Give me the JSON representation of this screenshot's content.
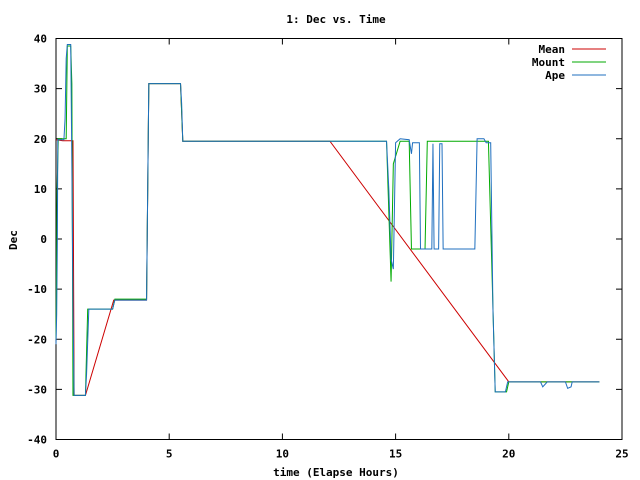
{
  "chart_data": {
    "type": "line",
    "title": "1: Dec vs. Time",
    "xlabel": "time (Elapse Hours)",
    "ylabel": "Dec",
    "xlim": [
      0,
      25
    ],
    "ylim": [
      -40,
      40
    ],
    "xticks": [
      0,
      5,
      10,
      15,
      20,
      25
    ],
    "yticks": [
      -40,
      -30,
      -20,
      -10,
      0,
      10,
      20,
      30,
      40
    ],
    "grid": false,
    "legend_position": "top-right",
    "series": [
      {
        "name": "Mean",
        "color": "#cc0000",
        "points": [
          [
            0.0,
            19.8
          ],
          [
            0.3,
            19.6
          ],
          [
            0.75,
            19.6
          ],
          [
            0.8,
            -31.2
          ],
          [
            1.3,
            -31.2
          ],
          [
            2.55,
            -12.2
          ],
          [
            4.0,
            -12.2
          ],
          [
            4.1,
            31.0
          ],
          [
            5.5,
            31.0
          ],
          [
            5.6,
            19.5
          ],
          [
            12.1,
            19.5
          ],
          [
            20.0,
            -28.5
          ],
          [
            21.0,
            -28.5
          ],
          [
            22.0,
            -28.5
          ],
          [
            23.0,
            -28.5
          ],
          [
            24.0,
            -28.5
          ]
        ]
      },
      {
        "name": "Mount",
        "color": "#00aa00",
        "points": [
          [
            0.0,
            -20.0
          ],
          [
            0.05,
            10.0
          ],
          [
            0.1,
            20.0
          ],
          [
            0.45,
            20.0
          ],
          [
            0.5,
            38.5
          ],
          [
            0.65,
            38.5
          ],
          [
            0.7,
            31.0
          ],
          [
            0.75,
            -31.2
          ],
          [
            1.3,
            -31.2
          ],
          [
            1.4,
            -14.0
          ],
          [
            2.5,
            -14.0
          ],
          [
            2.6,
            -12.0
          ],
          [
            4.0,
            -12.0
          ],
          [
            4.1,
            31.0
          ],
          [
            5.5,
            31.0
          ],
          [
            5.6,
            19.5
          ],
          [
            14.6,
            19.5
          ],
          [
            14.8,
            -8.5
          ],
          [
            14.9,
            15.0
          ],
          [
            15.2,
            19.5
          ],
          [
            15.6,
            19.5
          ],
          [
            15.7,
            -2.0
          ],
          [
            16.3,
            -2.0
          ],
          [
            16.4,
            19.5
          ],
          [
            18.8,
            19.5
          ],
          [
            19.1,
            19.5
          ],
          [
            19.4,
            -30.5
          ],
          [
            19.9,
            -30.5
          ],
          [
            20.0,
            -28.5
          ],
          [
            24.0,
            -28.5
          ]
        ]
      },
      {
        "name": "Ape",
        "color": "#1f6fbf",
        "points": [
          [
            0.0,
            -21.0
          ],
          [
            0.03,
            -15.0
          ],
          [
            0.06,
            0.0
          ],
          [
            0.08,
            19.8
          ],
          [
            0.35,
            19.8
          ],
          [
            0.4,
            24.0
          ],
          [
            0.45,
            36.0
          ],
          [
            0.5,
            38.8
          ],
          [
            0.65,
            38.8
          ],
          [
            0.7,
            15.0
          ],
          [
            0.75,
            -13.5
          ],
          [
            0.8,
            -31.2
          ],
          [
            1.3,
            -31.2
          ],
          [
            1.35,
            -27.0
          ],
          [
            1.45,
            -14.0
          ],
          [
            2.5,
            -14.0
          ],
          [
            2.6,
            -12.2
          ],
          [
            4.0,
            -12.2
          ],
          [
            4.05,
            10.0
          ],
          [
            4.1,
            31.0
          ],
          [
            5.5,
            31.0
          ],
          [
            5.55,
            27.0
          ],
          [
            5.6,
            19.5
          ],
          [
            14.6,
            19.5
          ],
          [
            14.7,
            10.0
          ],
          [
            14.8,
            -4.0
          ],
          [
            14.9,
            -6.0
          ],
          [
            15.0,
            19.2
          ],
          [
            15.2,
            20.0
          ],
          [
            15.6,
            19.8
          ],
          [
            15.7,
            17.0
          ],
          [
            15.75,
            19.2
          ],
          [
            16.05,
            19.2
          ],
          [
            16.1,
            -2.0
          ],
          [
            16.6,
            -2.0
          ],
          [
            16.65,
            19.0
          ],
          [
            16.7,
            -2.0
          ],
          [
            16.9,
            -2.0
          ],
          [
            16.95,
            19.0
          ],
          [
            17.05,
            19.0
          ],
          [
            17.1,
            -2.0
          ],
          [
            18.5,
            -2.0
          ],
          [
            18.6,
            20.0
          ],
          [
            18.9,
            20.0
          ],
          [
            19.0,
            19.2
          ],
          [
            19.2,
            19.2
          ],
          [
            19.3,
            -14.0
          ],
          [
            19.4,
            -30.5
          ],
          [
            19.85,
            -30.5
          ],
          [
            19.95,
            -28.5
          ],
          [
            21.4,
            -28.5
          ],
          [
            21.5,
            -29.5
          ],
          [
            21.7,
            -28.5
          ],
          [
            22.5,
            -28.5
          ],
          [
            22.6,
            -29.8
          ],
          [
            22.75,
            -29.5
          ],
          [
            22.8,
            -28.5
          ],
          [
            23.8,
            -28.5
          ],
          [
            24.0,
            -28.5
          ]
        ]
      }
    ]
  }
}
